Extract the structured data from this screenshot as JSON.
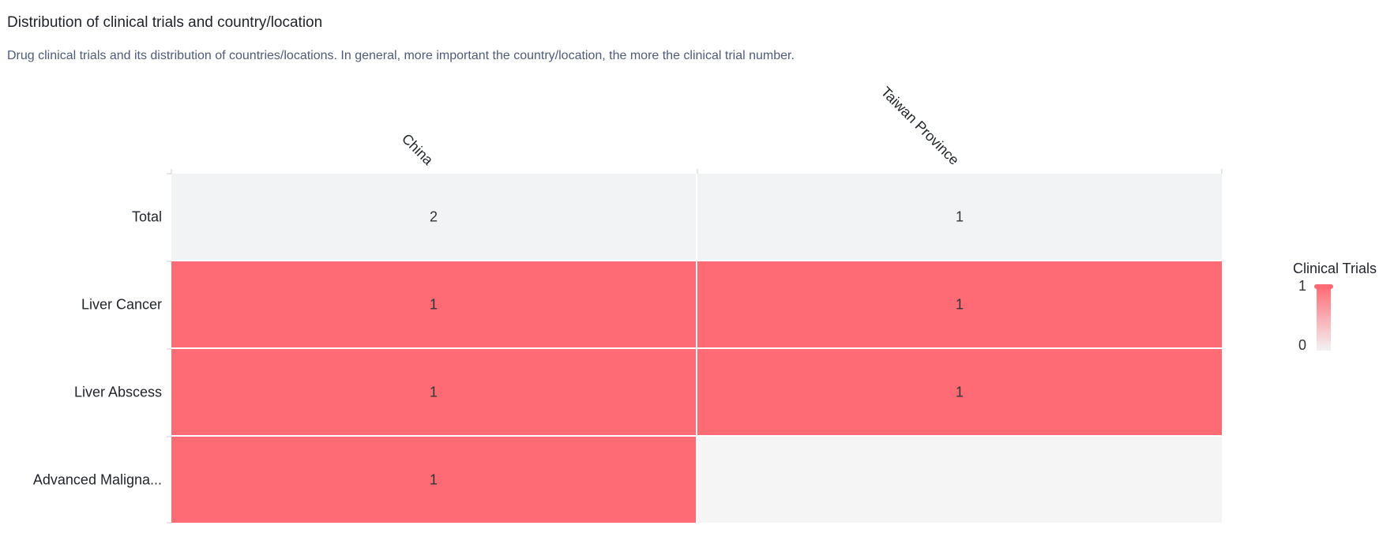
{
  "header": {
    "title": "Distribution of clinical trials and country/location",
    "subtitle": "Drug clinical trials and its distribution of countries/locations. In general, more important the country/location, the more the clinical trial number."
  },
  "chart_data": {
    "type": "heatmap",
    "columns": [
      "China",
      "Taiwan Province"
    ],
    "rows": [
      "Total",
      "Liver Cancer",
      "Liver Abscess",
      "Advanced Maligna..."
    ],
    "values": [
      [
        2,
        1
      ],
      [
        1,
        1
      ],
      [
        1,
        1
      ],
      [
        1,
        null
      ]
    ],
    "legend": {
      "title": "Clinical Trials",
      "min": 0,
      "max": 1,
      "placement": "right"
    },
    "colors": {
      "high": "#ff6b75",
      "low": "#f2f3f5",
      "total_row": "#f2f3f5",
      "empty": "#f5f5f6"
    }
  }
}
